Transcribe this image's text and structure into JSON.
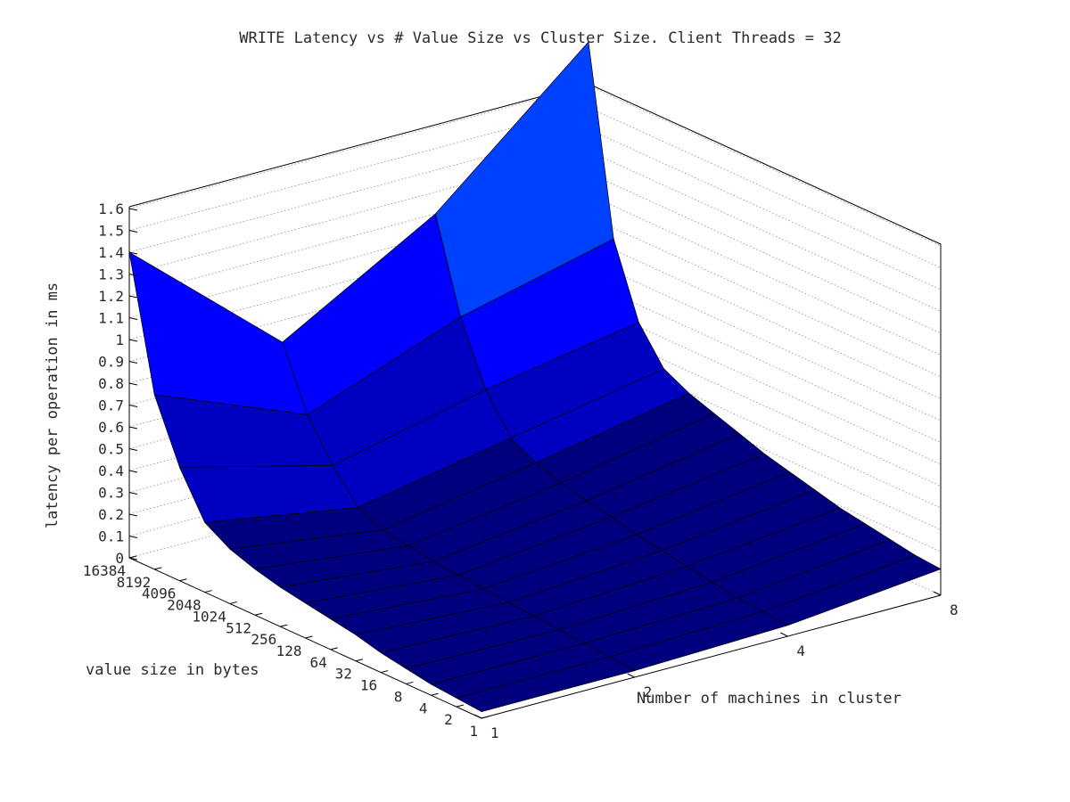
{
  "chart_data": {
    "type": "surface3d",
    "title": "WRITE Latency vs # Value Size vs Cluster Size.  Client Threads = 32",
    "xlabel": "value size in bytes",
    "ylabel": "Number of machines in cluster",
    "zlabel": "latency per operation in ms",
    "x_ticks": [
      "1",
      "2",
      "4",
      "8",
      "16",
      "32",
      "64",
      "128",
      "256",
      "512",
      "1024",
      "2048",
      "4096",
      "8192",
      "16384"
    ],
    "y_ticks": [
      "1",
      "2",
      "4",
      "8"
    ],
    "z_ticks": [
      "0",
      "0.1",
      "0.2",
      "0.3",
      "0.4",
      "0.5",
      "0.6",
      "0.7",
      "0.8",
      "0.9",
      "1",
      "1.1",
      "1.2",
      "1.3",
      "1.4",
      "1.5",
      "1.6"
    ],
    "zlim": [
      0,
      1.6
    ],
    "grid": true,
    "colormap": [
      "#00007f",
      "#0000c0",
      "#0000ff",
      "#0040ff",
      "#00b3ff"
    ],
    "rows": [
      {
        "value_size": 1,
        "latency": [
          0.03,
          0.03,
          0.05,
          0.12
        ]
      },
      {
        "value_size": 2,
        "latency": [
          0.04,
          0.04,
          0.06,
          0.13
        ]
      },
      {
        "value_size": 4,
        "latency": [
          0.05,
          0.05,
          0.07,
          0.15
        ]
      },
      {
        "value_size": 8,
        "latency": [
          0.07,
          0.06,
          0.09,
          0.17
        ]
      },
      {
        "value_size": 16,
        "latency": [
          0.09,
          0.07,
          0.11,
          0.19
        ]
      },
      {
        "value_size": 32,
        "latency": [
          0.12,
          0.08,
          0.13,
          0.22
        ]
      },
      {
        "value_size": 64,
        "latency": [
          0.14,
          0.09,
          0.15,
          0.25
        ]
      },
      {
        "value_size": 128,
        "latency": [
          0.16,
          0.1,
          0.18,
          0.28
        ]
      },
      {
        "value_size": 256,
        "latency": [
          0.18,
          0.11,
          0.2,
          0.32
        ]
      },
      {
        "value_size": 512,
        "latency": [
          0.21,
          0.13,
          0.23,
          0.36
        ]
      },
      {
        "value_size": 1024,
        "latency": [
          0.25,
          0.15,
          0.27,
          0.4
        ]
      },
      {
        "value_size": 2048,
        "latency": [
          0.32,
          0.2,
          0.33,
          0.46
        ]
      },
      {
        "value_size": 4096,
        "latency": [
          0.52,
          0.34,
          0.5,
          0.62
        ]
      },
      {
        "value_size": 8192,
        "latency": [
          0.8,
          0.52,
          0.78,
          0.95
        ]
      },
      {
        "value_size": 16384,
        "latency": [
          1.4,
          0.8,
          1.2,
          1.8
        ]
      }
    ]
  }
}
